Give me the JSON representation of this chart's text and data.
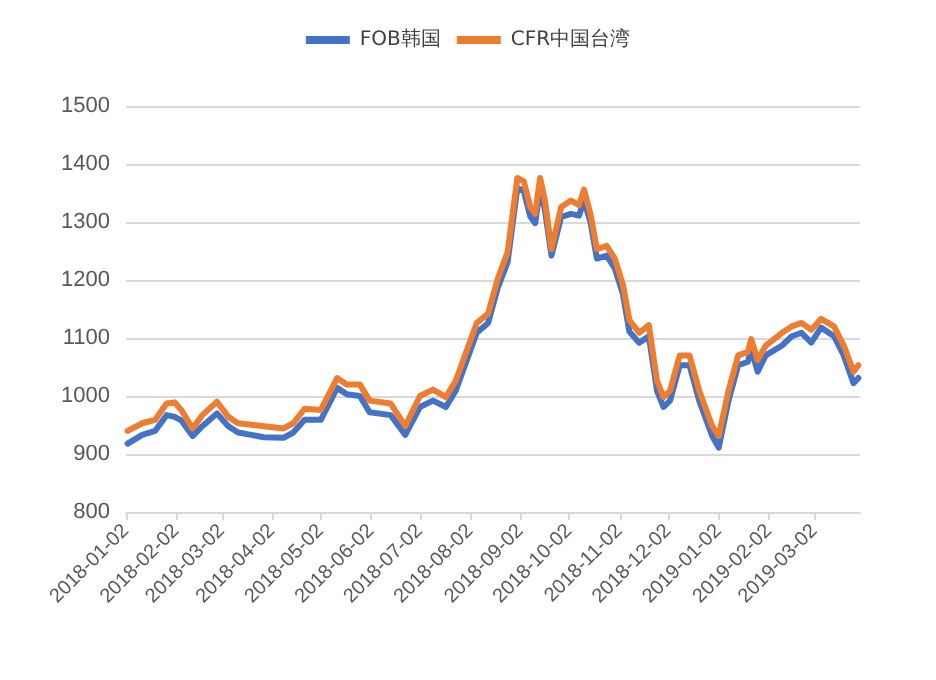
{
  "chart_data": {
    "type": "line",
    "x": [
      "2018-01-03",
      "2018-01-12",
      "2018-01-20",
      "2018-01-27",
      "2018-02-01",
      "2018-02-05",
      "2018-02-12",
      "2018-02-18",
      "2018-02-27",
      "2018-03-06",
      "2018-03-12",
      "2018-03-28",
      "2018-04-09",
      "2018-04-15",
      "2018-04-22",
      "2018-05-02",
      "2018-05-12",
      "2018-05-18",
      "2018-05-26",
      "2018-06-01",
      "2018-06-14",
      "2018-06-23",
      "2018-07-02",
      "2018-07-10",
      "2018-07-18",
      "2018-07-24",
      "2018-08-06",
      "2018-08-13",
      "2018-08-19",
      "2018-08-25",
      "2018-08-31",
      "2018-09-04",
      "2018-09-08",
      "2018-09-11",
      "2018-09-14",
      "2018-09-17",
      "2018-09-21",
      "2018-09-27",
      "2018-10-03",
      "2018-10-08",
      "2018-10-11",
      "2018-10-15",
      "2018-10-19",
      "2018-10-25",
      "2018-10-30",
      "2018-11-04",
      "2018-11-08",
      "2018-11-14",
      "2018-11-20",
      "2018-11-25",
      "2018-11-29",
      "2018-12-03",
      "2018-12-09",
      "2018-12-15",
      "2018-12-21",
      "2018-12-29",
      "2019-01-02",
      "2019-01-08",
      "2019-01-14",
      "2019-01-20",
      "2019-01-22",
      "2019-01-26",
      "2019-01-31",
      "2019-02-10",
      "2019-02-16",
      "2019-02-22",
      "2019-02-28",
      "2019-03-06",
      "2019-03-14",
      "2019-03-20",
      "2019-03-26",
      "2019-03-29"
    ],
    "series": [
      {
        "name": "FOB韩国",
        "color": "#4472c4",
        "values": [
          918,
          933,
          940,
          967,
          964,
          958,
          931,
          948,
          970,
          948,
          937,
          929,
          928,
          937,
          959,
          959,
          1014,
          1003,
          1000,
          972,
          967,
          933,
          981,
          992,
          981,
          1009,
          1109,
          1126,
          1187,
          1231,
          1359,
          1353,
          1309,
          1298,
          1359,
          1320,
          1242,
          1309,
          1314,
          1311,
          1337,
          1300,
          1237,
          1242,
          1220,
          1176,
          1111,
          1092,
          1103,
          1009,
          981,
          992,
          1053,
          1053,
          992,
          931,
          911,
          992,
          1053,
          1059,
          1081,
          1042,
          1070,
          1087,
          1103,
          1109,
          1092,
          1118,
          1103,
          1070,
          1022,
          1031
        ]
      },
      {
        "name": "CFR中国台湾",
        "color": "#ed7d31",
        "values": [
          940,
          953,
          959,
          987,
          989,
          976,
          944,
          967,
          990,
          964,
          953,
          948,
          944,
          953,
          978,
          976,
          1031,
          1020,
          1020,
          992,
          987,
          948,
          1000,
          1011,
          998,
          1026,
          1126,
          1142,
          1203,
          1248,
          1376,
          1370,
          1326,
          1314,
          1376,
          1337,
          1253,
          1326,
          1337,
          1329,
          1356,
          1314,
          1253,
          1259,
          1237,
          1192,
          1131,
          1109,
          1122,
          1026,
          998,
          1009,
          1070,
          1070,
          1009,
          948,
          931,
          1009,
          1070,
          1076,
          1098,
          1062,
          1087,
          1109,
          1120,
          1126,
          1114,
          1133,
          1120,
          1087,
          1042,
          1053
        ]
      }
    ],
    "xlim": [
      "2018-01-02",
      "2019-03-30"
    ],
    "xticks": [
      "2018-01-02",
      "2018-02-02",
      "2018-03-02",
      "2018-04-02",
      "2018-05-02",
      "2018-06-02",
      "2018-07-02",
      "2018-08-02",
      "2018-09-02",
      "2018-10-02",
      "2018-11-02",
      "2018-12-02",
      "2019-01-02",
      "2019-02-02",
      "2019-03-02"
    ],
    "ylim": [
      800,
      1500
    ],
    "yticks": [
      800,
      900,
      1000,
      1100,
      1200,
      1300,
      1400,
      1500
    ],
    "grid": "y",
    "legend": "top",
    "marker": "none",
    "line_style": "solid"
  }
}
